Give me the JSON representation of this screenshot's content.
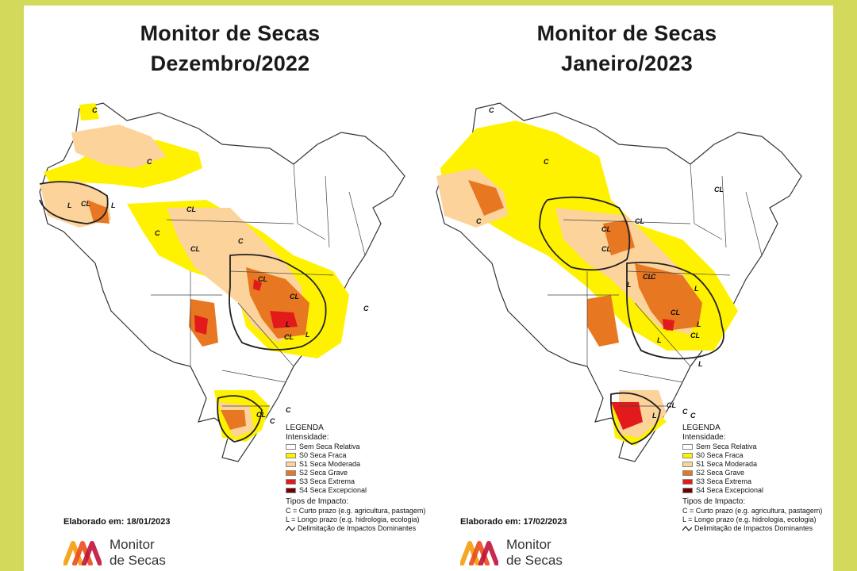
{
  "panels": [
    {
      "title_line1": "Monitor de Secas",
      "title_line2": "Dezembro/2022",
      "elaborado": "Elaborado em: 18/01/2023",
      "labels": [
        "C",
        "C",
        "L",
        "CL",
        "L",
        "CL",
        "C",
        "CL",
        "C",
        "CL",
        "L",
        "CL",
        "C",
        "CL",
        "L",
        "C",
        "CL",
        "C"
      ]
    },
    {
      "title_line1": "Monitor de Secas",
      "title_line2": "Janeiro/2023",
      "elaborado": "Elaborado em: 17/02/2023",
      "labels": [
        "C",
        "C",
        "CL",
        "CL",
        "CL",
        "CL",
        "L",
        "C",
        "C",
        "L",
        "CL",
        "CL",
        "L",
        "L",
        "CL",
        "L",
        "C",
        "L",
        "CL",
        "C"
      ]
    }
  ],
  "legend": {
    "title": "LEGENDA",
    "intensity_label": "Intensidade:",
    "items": [
      {
        "label": "Sem Seca Relativa",
        "color": "#ffffff"
      },
      {
        "label": "S0 Seca Fraca",
        "color": "#fff200"
      },
      {
        "label": "S1 Seca Moderada",
        "color": "#fcd39a"
      },
      {
        "label": "S2 Seca Grave",
        "color": "#e87722"
      },
      {
        "label": "S3 Seca Extrema",
        "color": "#e31a1c"
      },
      {
        "label": "S4 Seca Excepcional",
        "color": "#730000"
      }
    ],
    "impact_title": "Tipos de Impacto:",
    "impact_c": "C = Curto prazo (e.g. agricultura, pastagem)",
    "impact_l": "L = Longo prazo (e.g. hidrologia, ecologia)",
    "delimitation": "Delimitação de Impactos Dominantes"
  },
  "brand": {
    "line1": "Monitor",
    "line2": "de Secas",
    "colors": [
      "#f5a623",
      "#e94e1b",
      "#c0133a"
    ]
  }
}
